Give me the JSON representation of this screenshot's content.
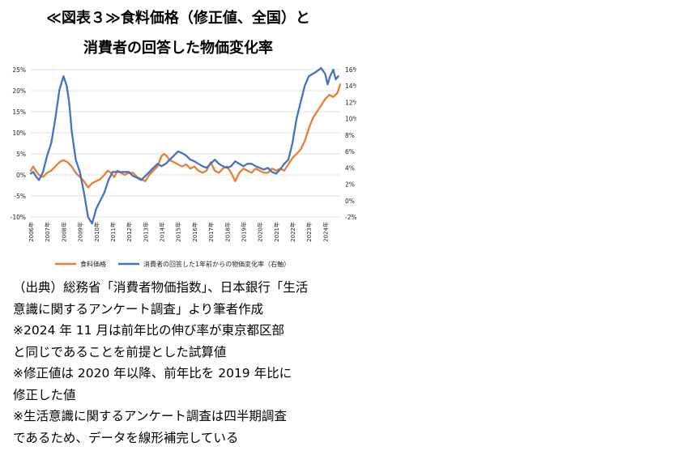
{
  "header": {
    "title_line1": "≪図表３≫食料価格（修正値、全国）と",
    "title_line2": "消費者の回答した物価変化率"
  },
  "chart_data": {
    "type": "line",
    "left_axis": {
      "ticks": [
        "25%",
        "20%",
        "15%",
        "10%",
        "5%",
        "0%",
        "-5%",
        "-10%"
      ],
      "min": -10,
      "max": 25
    },
    "right_axis": {
      "ticks": [
        "16%",
        "14%",
        "12%",
        "10%",
        "8%",
        "6%",
        "4%",
        "2%",
        "0%",
        "-2%"
      ],
      "min": -2,
      "max": 16
    },
    "x_ticks": [
      "2006年",
      "2007年",
      "2008年",
      "2009年",
      "2010年",
      "2011年",
      "2012年",
      "2013年",
      "2014年",
      "2015年",
      "2016年",
      "2017年",
      "2018年",
      "2019年",
      "2020年",
      "2021年",
      "2022年",
      "2023年",
      "2024年"
    ],
    "x_range": [
      2006,
      2024.92
    ],
    "series": [
      {
        "name": "食料価格",
        "color": "#ED7D31",
        "axis": "left",
        "x": [
          2006.0,
          2006.15,
          2006.3,
          2006.5,
          2006.75,
          2007.0,
          2007.25,
          2007.5,
          2007.75,
          2008.0,
          2008.25,
          2008.5,
          2008.75,
          2009.0,
          2009.25,
          2009.5,
          2009.75,
          2010.0,
          2010.25,
          2010.5,
          2010.7,
          2010.9,
          2011.1,
          2011.3,
          2011.5,
          2011.75,
          2012.0,
          2012.25,
          2012.5,
          2012.75,
          2013.0,
          2013.25,
          2013.5,
          2013.75,
          2014.0,
          2014.15,
          2014.3,
          2014.5,
          2014.75,
          2015.0,
          2015.25,
          2015.5,
          2015.75,
          2016.0,
          2016.25,
          2016.5,
          2016.75,
          2017.0,
          2017.25,
          2017.5,
          2017.75,
          2018.0,
          2018.25,
          2018.5,
          2018.75,
          2019.0,
          2019.25,
          2019.5,
          2019.75,
          2020.0,
          2020.25,
          2020.5,
          2020.75,
          2021.0,
          2021.25,
          2021.5,
          2021.75,
          2022.0,
          2022.25,
          2022.5,
          2022.75,
          2023.0,
          2023.25,
          2023.5,
          2023.75,
          2024.0,
          2024.25,
          2024.5,
          2024.75,
          2024.92
        ],
        "values": [
          1.0,
          2.0,
          1.0,
          0.0,
          -0.5,
          0.5,
          1.0,
          2.0,
          3.0,
          3.5,
          3.0,
          2.0,
          0.5,
          -0.5,
          -1.5,
          -3.0,
          -2.0,
          -1.5,
          -1.0,
          0.0,
          1.0,
          0.5,
          -0.5,
          1.0,
          0.5,
          0.0,
          0.5,
          0.5,
          -0.5,
          -1.0,
          -1.5,
          0.0,
          1.0,
          2.0,
          4.5,
          5.0,
          4.5,
          3.5,
          3.0,
          2.5,
          2.0,
          2.5,
          1.5,
          2.0,
          1.0,
          0.5,
          1.0,
          3.0,
          1.0,
          0.5,
          1.5,
          2.0,
          0.5,
          -1.5,
          0.5,
          1.5,
          1.0,
          0.5,
          1.5,
          1.0,
          0.5,
          0.5,
          1.5,
          1.0,
          1.5,
          1.0,
          2.5,
          4.0,
          5.0,
          6.0,
          8.0,
          11.0,
          13.5,
          15.0,
          16.5,
          18.0,
          19.0,
          18.5,
          19.5,
          21.5
        ]
      },
      {
        "name": "消費者の回答した1年前からの物価変化率（右軸）",
        "color": "#4472C4",
        "axis": "right",
        "x": [
          2006.0,
          2006.15,
          2006.3,
          2006.5,
          2006.75,
          2007.0,
          2007.25,
          2007.5,
          2007.75,
          2008.0,
          2008.2,
          2008.35,
          2008.5,
          2008.75,
          2009.0,
          2009.25,
          2009.5,
          2009.75,
          2010.0,
          2010.25,
          2010.5,
          2010.75,
          2011.0,
          2011.25,
          2011.5,
          2011.75,
          2012.0,
          2012.25,
          2012.5,
          2012.75,
          2013.0,
          2013.25,
          2013.5,
          2013.75,
          2014.0,
          2014.25,
          2014.5,
          2014.75,
          2015.0,
          2015.25,
          2015.5,
          2015.75,
          2016.0,
          2016.25,
          2016.5,
          2016.75,
          2017.0,
          2017.25,
          2017.5,
          2017.75,
          2018.0,
          2018.25,
          2018.5,
          2018.75,
          2019.0,
          2019.25,
          2019.5,
          2019.75,
          2020.0,
          2020.25,
          2020.5,
          2020.75,
          2021.0,
          2021.25,
          2021.5,
          2021.75,
          2022.0,
          2022.25,
          2022.5,
          2022.75,
          2023.0,
          2023.25,
          2023.5,
          2023.75,
          2024.0,
          2024.15,
          2024.3,
          2024.5,
          2024.65,
          2024.8
        ],
        "values": [
          3.3,
          3.5,
          3.0,
          2.5,
          3.5,
          5.5,
          7.0,
          10.0,
          13.5,
          15.2,
          14.0,
          12.0,
          8.5,
          5.0,
          3.5,
          1.0,
          -2.0,
          -2.8,
          -1.0,
          0.0,
          1.0,
          2.5,
          3.5,
          3.5,
          3.5,
          3.5,
          3.5,
          3.0,
          2.8,
          2.5,
          3.0,
          3.5,
          4.0,
          4.5,
          4.2,
          4.5,
          5.0,
          5.5,
          6.0,
          5.8,
          5.5,
          5.0,
          4.8,
          4.5,
          4.2,
          4.0,
          4.5,
          5.0,
          4.5,
          4.2,
          4.0,
          4.2,
          4.8,
          4.5,
          4.2,
          4.5,
          4.5,
          4.2,
          4.0,
          3.8,
          4.0,
          3.5,
          3.3,
          3.8,
          4.5,
          5.0,
          7.0,
          10.0,
          12.0,
          14.0,
          15.2,
          15.5,
          15.8,
          16.2,
          15.5,
          14.2,
          15.2,
          16.0,
          14.8,
          15.2
        ]
      }
    ]
  },
  "notes": [
    "（出典）総務省「消費者物価指数」、日本銀行「生活",
    "意識に関するアンケート調査」より筆者作成",
    "※2024 年 11 月は前年比の伸び率が東京都区部",
    "と同じであることを前提とした試算値",
    "※修正値は 2020 年以降、前年比を 2019 年比に",
    "修正した値",
    "※生活意識に関するアンケート調査は四半期調査",
    "であるため、データを線形補完している"
  ]
}
